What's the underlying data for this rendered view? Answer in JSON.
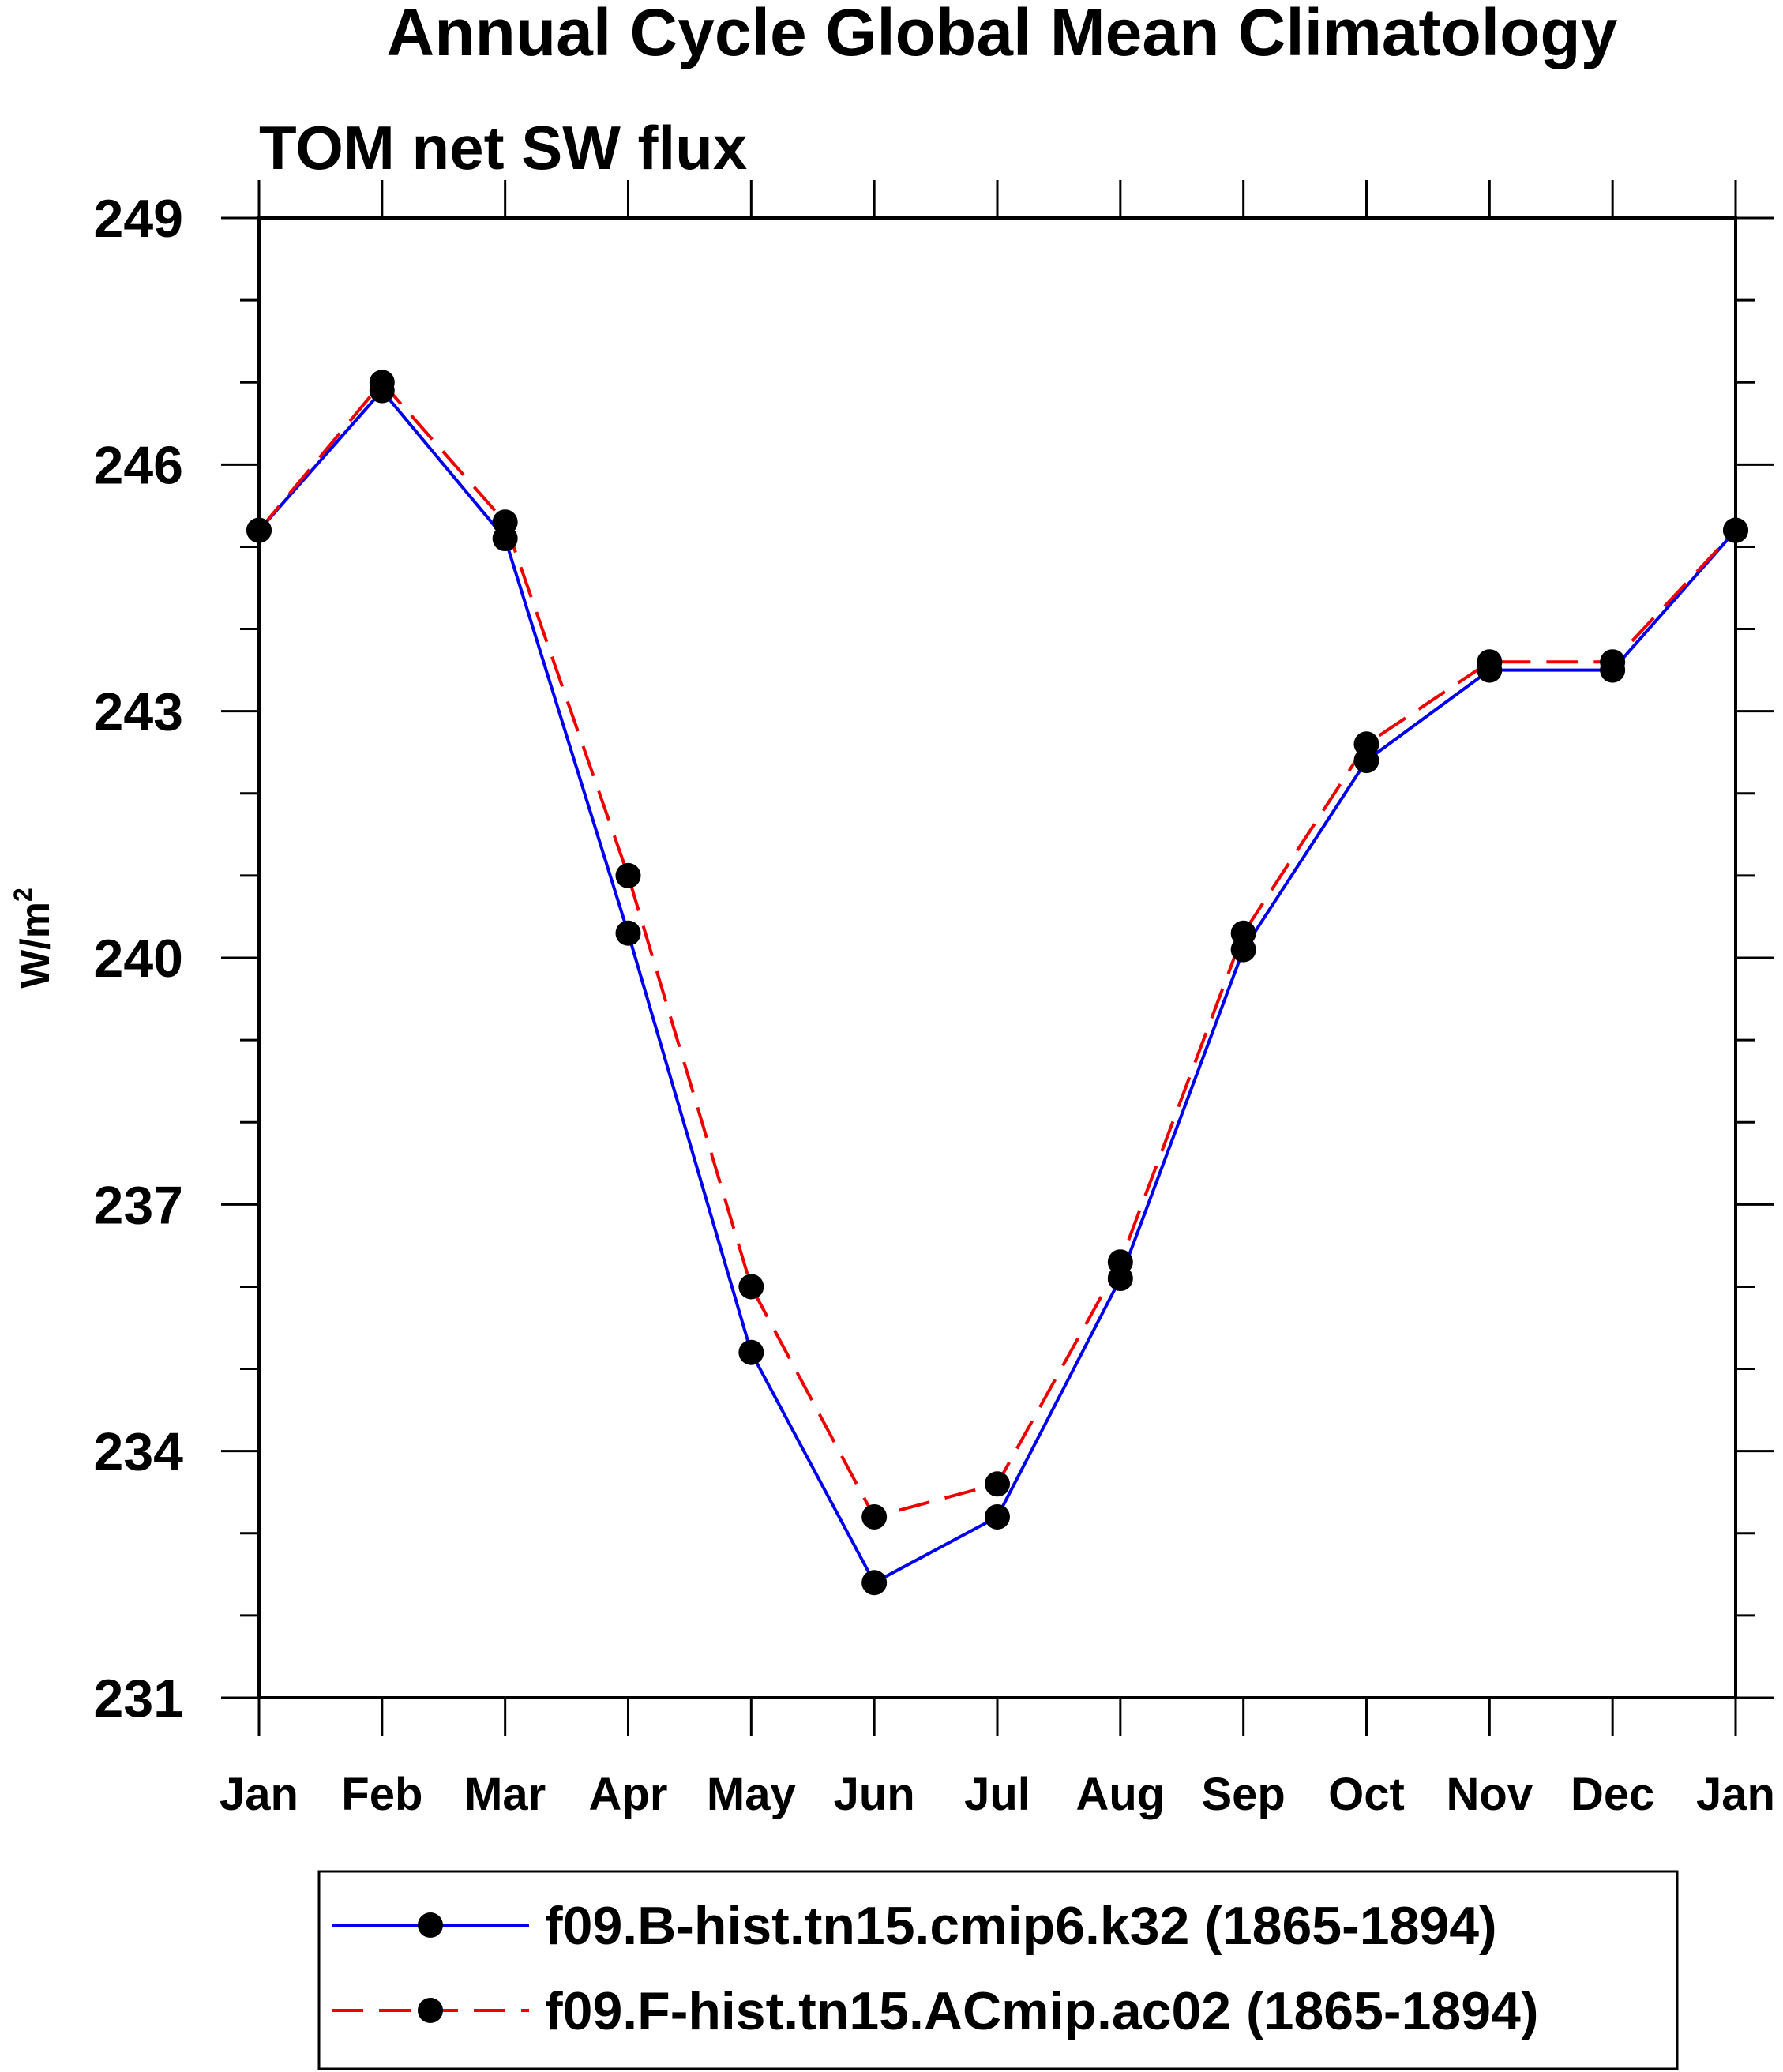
{
  "chart_data": {
    "type": "line",
    "title": "Annual Cycle Global Mean Climatology",
    "subtitle": "TOM net SW flux",
    "xlabel": "",
    "ylabel": "W/m",
    "ylabel_superscript": "2",
    "categories": [
      "Jan",
      "Feb",
      "Mar",
      "Apr",
      "May",
      "Jun",
      "Jul",
      "Aug",
      "Sep",
      "Oct",
      "Nov",
      "Dec",
      "Jan"
    ],
    "ylim": [
      231,
      249
    ],
    "yticks": [
      231,
      234,
      237,
      240,
      243,
      246,
      249
    ],
    "ytick_labels": [
      "231",
      "234",
      "237",
      "240",
      "243",
      "246",
      "249"
    ],
    "grid": false,
    "legend_position": "bottom",
    "series": [
      {
        "name": "f09.B-hist.tn15.cmip6.k32 (1865-1894)",
        "color": "#0000ee",
        "line_style": "solid",
        "marker": "filled-circle",
        "marker_color": "#000000",
        "values": [
          245.2,
          246.9,
          245.1,
          240.3,
          235.2,
          232.4,
          233.2,
          236.1,
          240.1,
          242.4,
          243.5,
          243.5,
          245.2
        ]
      },
      {
        "name": "f09.F-hist.tn15.ACmip.ac02 (1865-1894)",
        "color": "#ee0000",
        "line_style": "dashed",
        "marker": "filled-circle",
        "marker_color": "#000000",
        "values": [
          245.2,
          247.0,
          245.3,
          241.0,
          236.0,
          233.2,
          233.6,
          236.3,
          240.3,
          242.6,
          243.6,
          243.6,
          245.2
        ]
      }
    ]
  }
}
